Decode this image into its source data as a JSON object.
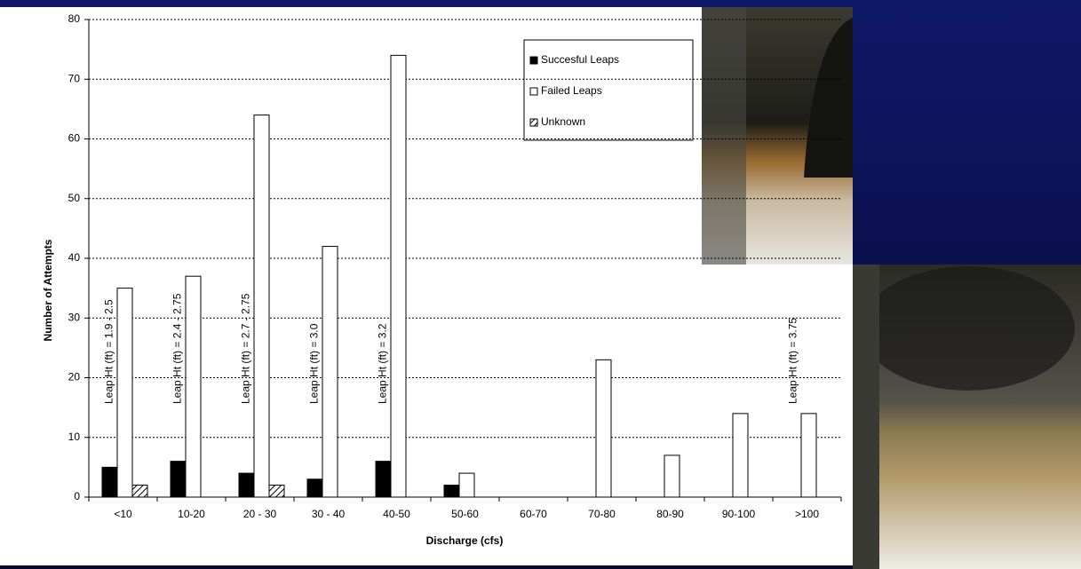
{
  "chart_data": {
    "type": "bar",
    "x_label": "Discharge (cfs)",
    "y_label": "Number of Attempts",
    "categories": [
      "<10",
      "10-20",
      "20 - 30",
      "30 - 40",
      "40-50",
      "50-60",
      "60-70",
      "70-80",
      "80-90",
      "90-100",
      ">100"
    ],
    "series": [
      {
        "name": "Succesful Leaps",
        "color": "#000000",
        "values": [
          5,
          6,
          4,
          3,
          6,
          2,
          0,
          0,
          0,
          0,
          0
        ]
      },
      {
        "name": "Failed Leaps",
        "color": "#ffffff",
        "values": [
          35,
          37,
          64,
          42,
          74,
          4,
          0,
          23,
          7,
          14,
          14
        ]
      },
      {
        "name": "Unknown",
        "color": "hatch",
        "values": [
          2,
          0,
          2,
          0,
          0,
          0,
          0,
          0,
          0,
          0,
          0
        ]
      }
    ],
    "leap_heights": [
      "Leap Ht (ft) = 1.9 - 2.5",
      "Leap Ht (ft) = 2.4 - 2.75",
      "Leap Ht (ft) = 2.7 - 2.75",
      "Leap Ht (ft) = 3.0",
      "Leap Ht (ft) = 3.2",
      null,
      null,
      null,
      null,
      null,
      "Leap Ht (ft) = 3.75"
    ],
    "ylim": [
      0,
      80
    ],
    "yticks": [
      0,
      10,
      20,
      30,
      40,
      50,
      60,
      70,
      80
    ],
    "grid": true
  }
}
